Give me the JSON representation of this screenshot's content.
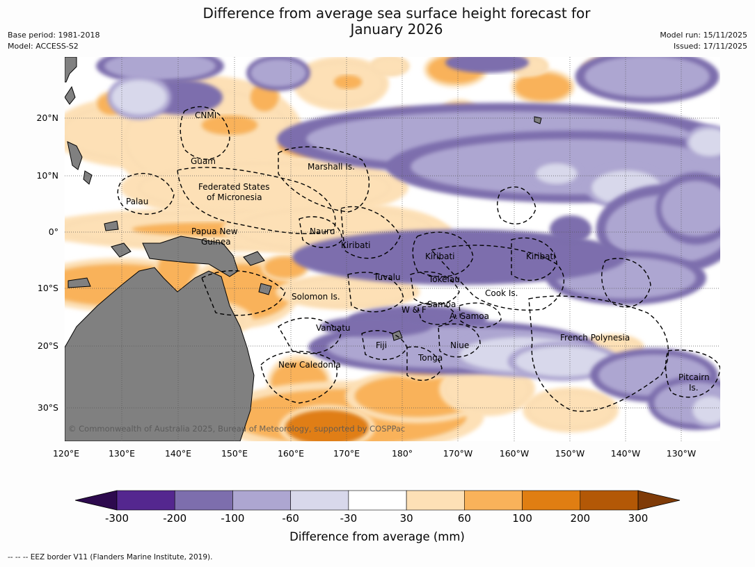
{
  "title_line1": "Difference from average sea surface height forecast for",
  "title_line2": "January 2026",
  "meta_left": [
    "Base period: 1981-2018",
    "Model: ACCESS-S2"
  ],
  "meta_right": [
    "Model run: 15/11/2025",
    "Issued: 17/11/2025"
  ],
  "lon_ticks": [
    "120°E",
    "130°E",
    "140°E",
    "150°E",
    "160°E",
    "170°E",
    "180°",
    "170°W",
    "160°W",
    "150°W",
    "140°W",
    "130°W"
  ],
  "lat_ticks": [
    "20°N",
    "10°N",
    "0°",
    "10°S",
    "20°S",
    "30°S"
  ],
  "copyright": "© Commonwealth of Australia 2025, Bureau of Meteorology, supported by COSPPac",
  "places": [
    "CNMI",
    "Guam",
    "Marshall Is.",
    "Federated States",
    "of Micronesia",
    "Palau",
    "Papua New",
    "Guinea",
    "Nauru",
    "Kiribati",
    "Kiribati",
    "Kiribati",
    "Tuvalu",
    "Tokelau",
    "Solomon Is.",
    "Cook Is.",
    "Samoa",
    "W & F",
    "A. Samoa",
    "Vanuatu",
    "Fiji",
    "Niue",
    "French Polynesia",
    "Tonga",
    "New Caledonia",
    "Pitcairn",
    "Is."
  ],
  "colorbar": {
    "ticks": [
      "-300",
      "-200",
      "-100",
      "-60",
      "-30",
      "30",
      "60",
      "100",
      "200",
      "300"
    ],
    "colors": [
      "#2d0a4e",
      "#54278f",
      "#7d6ead",
      "#ada6d1",
      "#d8d8eb",
      "#ffffff",
      "#fde0b6",
      "#f9b25a",
      "#e07e12",
      "#b35806",
      "#7f3b08"
    ],
    "label": "Difference from average (mm)"
  },
  "footer": "--  --  -- EEZ border V11 (Flanders Marine Institute, 2019)."
}
